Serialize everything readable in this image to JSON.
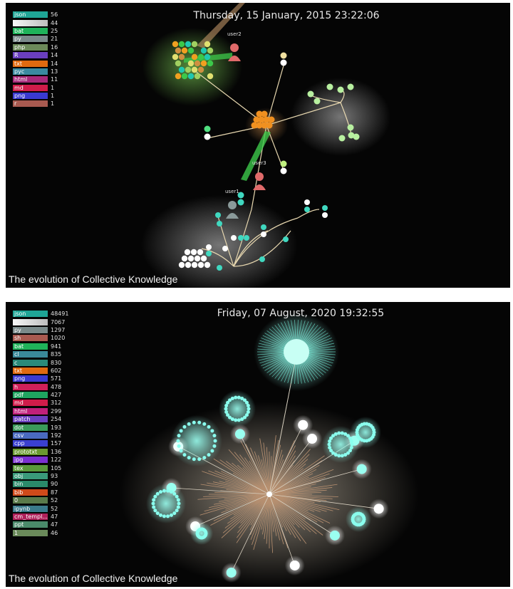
{
  "top_frame": {
    "timestamp": "Thursday, 15 January, 2015 23:22:06",
    "caption": "The evolution of Collective Knowledge",
    "users": [
      {
        "label": "user2"
      },
      {
        "label": "user3"
      },
      {
        "label": "user1"
      }
    ],
    "legend": [
      {
        "ext": "json",
        "count": "56",
        "color": "#1fa596"
      },
      {
        "ext": "",
        "count": "44",
        "color": "#dcdcdc"
      },
      {
        "ext": "bat",
        "count": "25",
        "color": "#1fb35a"
      },
      {
        "ext": "py",
        "count": "21",
        "color": "#7a8a8a"
      },
      {
        "ext": "php",
        "count": "16",
        "color": "#6c8a5a"
      },
      {
        "ext": "R",
        "count": "14",
        "color": "#6a3fbf"
      },
      {
        "ext": "txt",
        "count": "14",
        "color": "#e06a10"
      },
      {
        "ext": "pyc",
        "count": "13",
        "color": "#3a8aa0"
      },
      {
        "ext": "html",
        "count": "11",
        "color": "#a82a7a"
      },
      {
        "ext": "md",
        "count": "1",
        "color": "#d01c4a"
      },
      {
        "ext": "png",
        "count": "1",
        "color": "#3a3ad0"
      },
      {
        "ext": "r",
        "count": "1",
        "color": "#a85a50"
      }
    ]
  },
  "bottom_frame": {
    "timestamp": "Friday, 07 August, 2020 19:32:55",
    "caption": "The evolution of Collective Knowledge",
    "legend": [
      {
        "ext": "json",
        "count": "48491",
        "color": "#1fa596"
      },
      {
        "ext": "",
        "count": "7067",
        "color": "#dcdcdc"
      },
      {
        "ext": "py",
        "count": "1297",
        "color": "#7a8a8a"
      },
      {
        "ext": "sh",
        "count": "1020",
        "color": "#a85a50"
      },
      {
        "ext": "bat",
        "count": "941",
        "color": "#1fb35a"
      },
      {
        "ext": "cl",
        "count": "835",
        "color": "#3a8a9a"
      },
      {
        "ext": "c",
        "count": "830",
        "color": "#2a8a7a"
      },
      {
        "ext": "txt",
        "count": "602",
        "color": "#e06a10"
      },
      {
        "ext": "png",
        "count": "571",
        "color": "#3a3ad0"
      },
      {
        "ext": "h",
        "count": "478",
        "color": "#d0205a"
      },
      {
        "ext": "pdf",
        "count": "427",
        "color": "#1fa560"
      },
      {
        "ext": "md",
        "count": "312",
        "color": "#d01c4a"
      },
      {
        "ext": "html",
        "count": "299",
        "color": "#c0207a"
      },
      {
        "ext": "patch",
        "count": "254",
        "color": "#6a3fbf"
      },
      {
        "ext": "dot",
        "count": "193",
        "color": "#3a9a5a"
      },
      {
        "ext": "csv",
        "count": "192",
        "color": "#4a6ac0"
      },
      {
        "ext": "cpp",
        "count": "157",
        "color": "#3a40d0"
      },
      {
        "ext": "prototxt",
        "count": "136",
        "color": "#6a9a30"
      },
      {
        "ext": "jpg",
        "count": "122",
        "color": "#7a30d0"
      },
      {
        "ext": "tex",
        "count": "105",
        "color": "#5a9a3a"
      },
      {
        "ext": "obj",
        "count": "93",
        "color": "#3a9a7a"
      },
      {
        "ext": "bin",
        "count": "90",
        "color": "#2a8a6a"
      },
      {
        "ext": "bib",
        "count": "87",
        "color": "#d04a1a"
      },
      {
        "ext": "0",
        "count": "52",
        "color": "#5a7a4a"
      },
      {
        "ext": "ipynb",
        "count": "52",
        "color": "#3a7a8a"
      },
      {
        "ext": "cm_templ...",
        "count": "47",
        "color": "#b0205a"
      },
      {
        "ext": "ppt",
        "count": "47",
        "color": "#4a8a6a"
      },
      {
        "ext": "1",
        "count": "46",
        "color": "#6a8a5a"
      }
    ]
  }
}
